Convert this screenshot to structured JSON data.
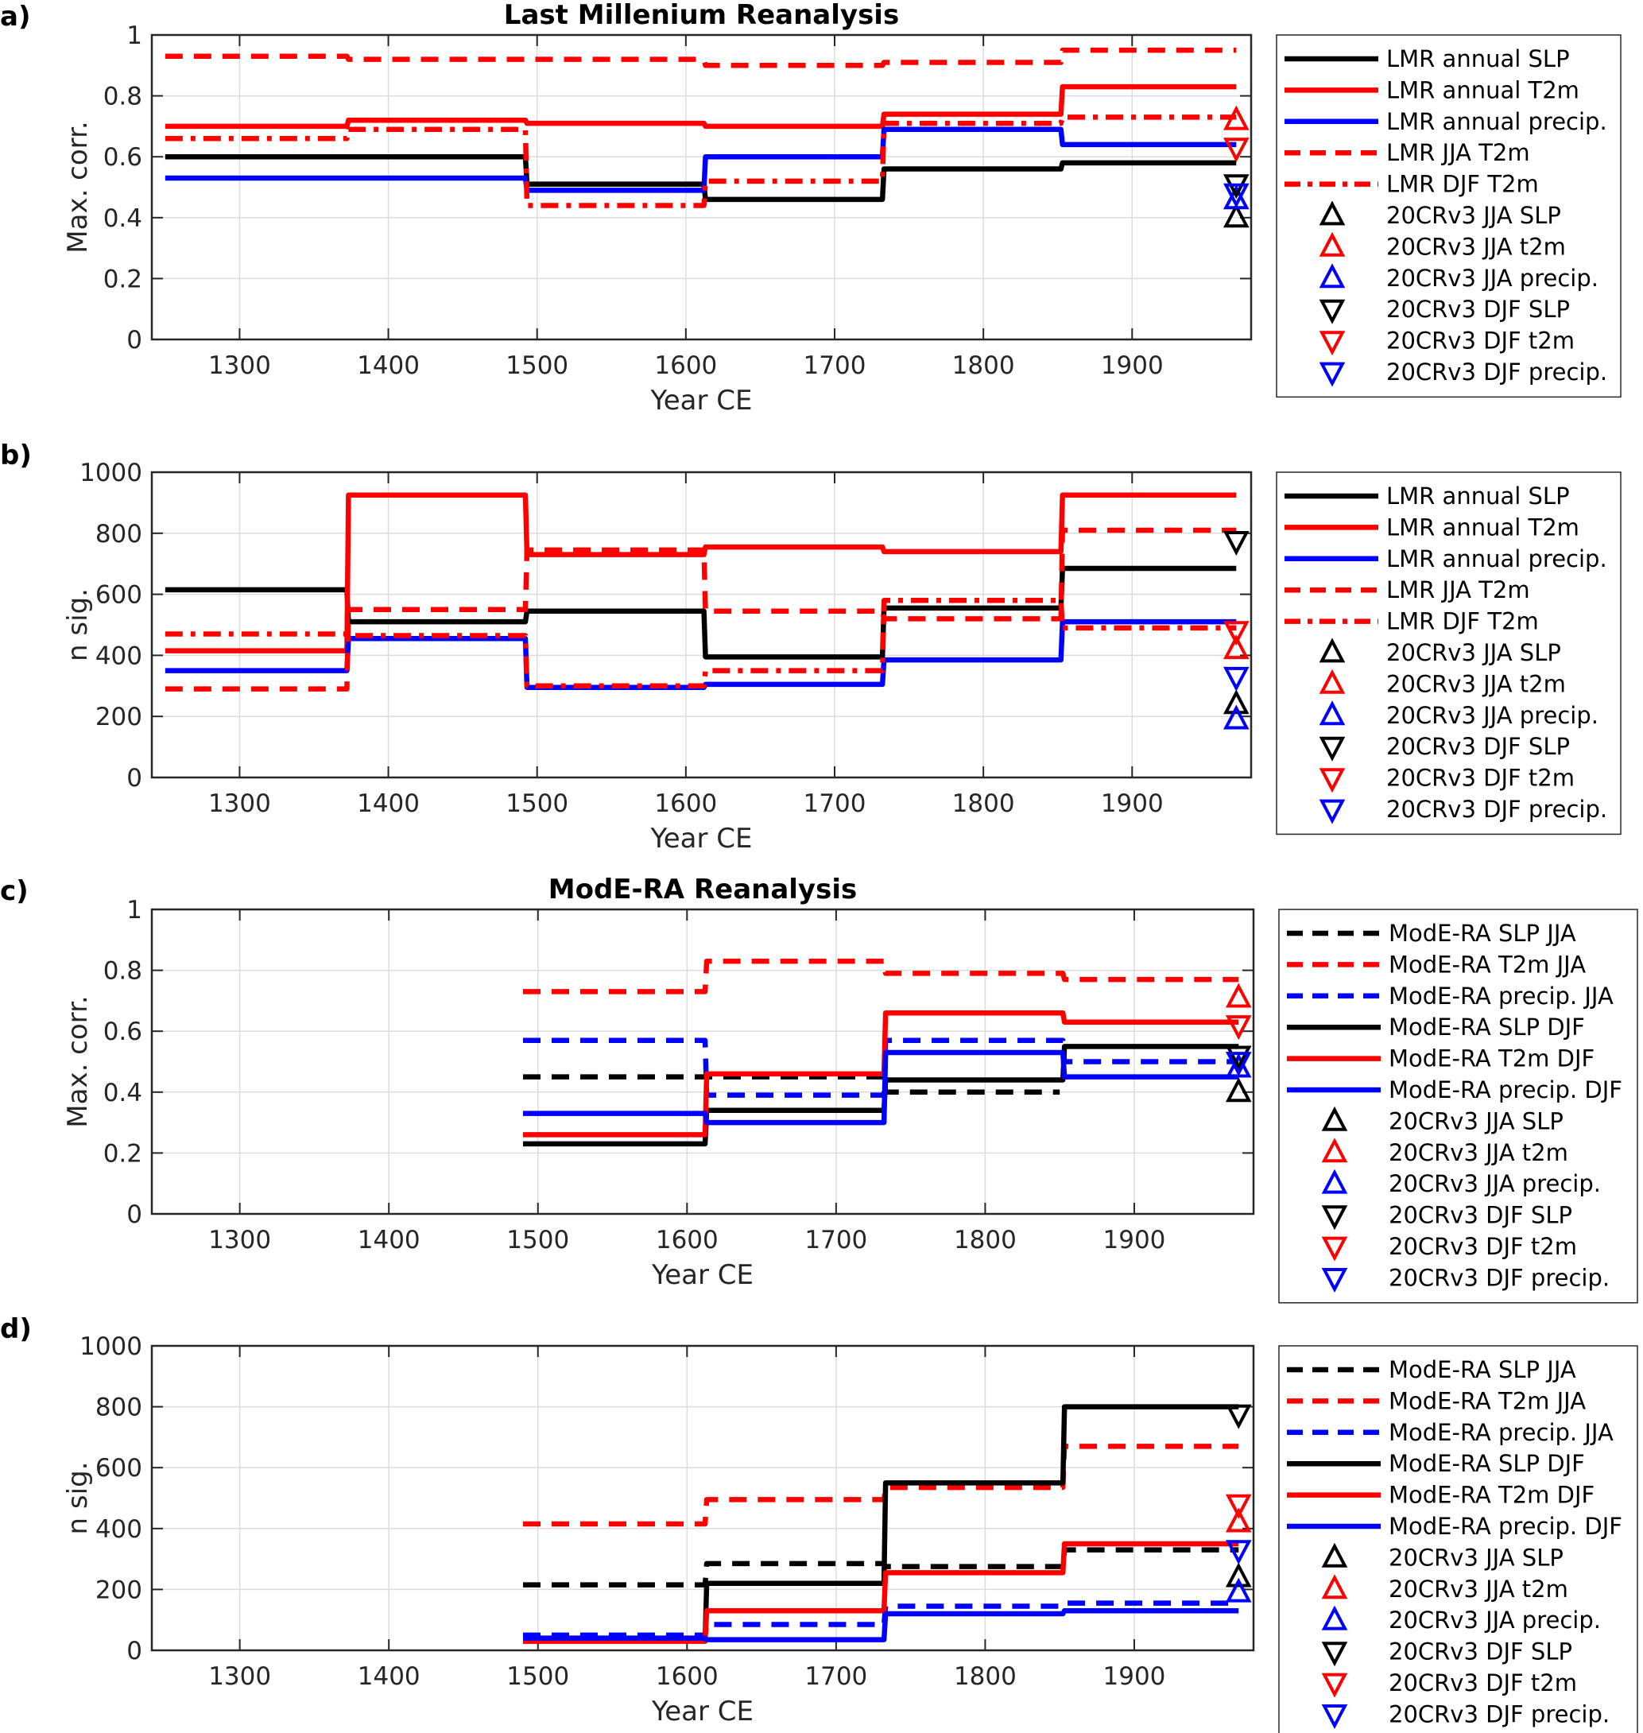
{
  "chart_data": [
    {
      "type": "line",
      "panel_label": "a)",
      "title": "Last Millenium Reanalysis",
      "xlabel": "Year CE",
      "ylabel": "Max. corr.",
      "xlim": [
        1241,
        1980
      ],
      "ylim": [
        0,
        1
      ],
      "xticks": [
        "1300",
        "1400",
        "1500",
        "1600",
        "1700",
        "1800",
        "1900"
      ],
      "yticks": [
        "0",
        "0.2",
        "0.4",
        "0.6",
        "0.8",
        "1"
      ],
      "grid": true,
      "legend_position": "outside-right",
      "step_edges": [
        1250,
        1370,
        1490,
        1610,
        1730,
        1850,
        1970
      ],
      "series": [
        {
          "name": "LMR annual SLP",
          "color": "#000000",
          "style": "solid",
          "values": [
            0.6,
            0.6,
            0.51,
            0.46,
            0.56,
            0.58
          ]
        },
        {
          "name": "LMR annual T2m",
          "color": "#ff0000",
          "style": "solid",
          "values": [
            0.7,
            0.72,
            0.71,
            0.7,
            0.74,
            0.83
          ]
        },
        {
          "name": "LMR annual precip.",
          "color": "#0000ff",
          "style": "solid",
          "values": [
            0.53,
            0.53,
            0.49,
            0.6,
            0.69,
            0.64
          ]
        },
        {
          "name": "LMR JJA T2m",
          "color": "#ff0000",
          "style": "dashed",
          "values": [
            0.93,
            0.92,
            0.92,
            0.9,
            0.91,
            0.95
          ]
        },
        {
          "name": "LMR DJF T2m",
          "color": "#ff0000",
          "style": "dashdot",
          "values": [
            0.66,
            0.69,
            0.44,
            0.52,
            0.71,
            0.73
          ]
        }
      ],
      "markers": [
        {
          "name": "20CRv3 JJA SLP",
          "color": "#000000",
          "shape": "triangle-up",
          "x": 1970,
          "y": 0.4
        },
        {
          "name": "20CRv3 JJA t2m",
          "color": "#ff0000",
          "shape": "triangle-up",
          "x": 1970,
          "y": 0.72
        },
        {
          "name": "20CRv3 JJA precip.",
          "color": "#0000ff",
          "shape": "triangle-up",
          "x": 1970,
          "y": 0.46
        },
        {
          "name": "20CRv3 DJF SLP",
          "color": "#000000",
          "shape": "triangle-down",
          "x": 1970,
          "y": 0.51
        },
        {
          "name": "20CRv3 DJF t2m",
          "color": "#ff0000",
          "shape": "triangle-down",
          "x": 1970,
          "y": 0.63
        },
        {
          "name": "20CRv3 DJF precip.",
          "color": "#0000ff",
          "shape": "triangle-down",
          "x": 1970,
          "y": 0.48
        }
      ]
    },
    {
      "type": "line",
      "panel_label": "b)",
      "title": "",
      "xlabel": "Year CE",
      "ylabel": "n sig.",
      "xlim": [
        1241,
        1980
      ],
      "ylim": [
        0,
        1000
      ],
      "xticks": [
        "1300",
        "1400",
        "1500",
        "1600",
        "1700",
        "1800",
        "1900"
      ],
      "yticks": [
        "0",
        "200",
        "400",
        "600",
        "800",
        "1000"
      ],
      "grid": true,
      "legend_position": "outside-right",
      "step_edges": [
        1250,
        1370,
        1490,
        1610,
        1730,
        1850,
        1970
      ],
      "series": [
        {
          "name": "LMR annual SLP",
          "color": "#000000",
          "style": "solid",
          "values": [
            615,
            510,
            545,
            395,
            555,
            685
          ]
        },
        {
          "name": "LMR annual T2m",
          "color": "#ff0000",
          "style": "solid",
          "values": [
            415,
            925,
            730,
            755,
            740,
            925
          ]
        },
        {
          "name": "LMR annual precip.",
          "color": "#0000ff",
          "style": "solid",
          "values": [
            350,
            455,
            295,
            305,
            385,
            510
          ]
        },
        {
          "name": "LMR JJA T2m",
          "color": "#ff0000",
          "style": "dashed",
          "values": [
            290,
            550,
            745,
            545,
            520,
            810
          ]
        },
        {
          "name": "LMR DJF T2m",
          "color": "#ff0000",
          "style": "dashdot",
          "values": [
            470,
            465,
            300,
            350,
            580,
            490
          ]
        }
      ],
      "markers": [
        {
          "name": "20CRv3 JJA SLP",
          "color": "#000000",
          "shape": "triangle-up",
          "x": 1970,
          "y": 240
        },
        {
          "name": "20CRv3 JJA t2m",
          "color": "#ff0000",
          "shape": "triangle-up",
          "x": 1970,
          "y": 420
        },
        {
          "name": "20CRv3 JJA precip.",
          "color": "#0000ff",
          "shape": "triangle-up",
          "x": 1970,
          "y": 190
        },
        {
          "name": "20CRv3 DJF SLP",
          "color": "#000000",
          "shape": "triangle-down",
          "x": 1970,
          "y": 775
        },
        {
          "name": "20CRv3 DJF t2m",
          "color": "#ff0000",
          "shape": "triangle-down",
          "x": 1970,
          "y": 480
        },
        {
          "name": "20CRv3 DJF precip.",
          "color": "#0000ff",
          "shape": "triangle-down",
          "x": 1970,
          "y": 330
        }
      ]
    },
    {
      "type": "line",
      "panel_label": "c)",
      "title": "ModE-RA Reanalysis",
      "xlabel": "Year CE",
      "ylabel": "Max. corr.",
      "xlim": [
        1241,
        1980
      ],
      "ylim": [
        0,
        1
      ],
      "xticks": [
        "1300",
        "1400",
        "1500",
        "1600",
        "1700",
        "1800",
        "1900"
      ],
      "yticks": [
        "0",
        "0.2",
        "0.4",
        "0.6",
        "0.8",
        "1"
      ],
      "grid": true,
      "legend_position": "outside-right",
      "step_edges": [
        1490,
        1610,
        1730,
        1850,
        1970
      ],
      "series": [
        {
          "name": "ModE-RA SLP JJA",
          "color": "#000000",
          "style": "dashed",
          "values": [
            0.45,
            0.45,
            0.4,
            null
          ]
        },
        {
          "name": "ModE-RA T2m JJA",
          "color": "#ff0000",
          "style": "dashed",
          "values": [
            0.73,
            0.83,
            0.79,
            0.77
          ]
        },
        {
          "name": "ModE-RA precip. JJA",
          "color": "#0000ff",
          "style": "dashed",
          "values": [
            0.57,
            0.39,
            0.57,
            0.5
          ]
        },
        {
          "name": "ModE-RA SLP DJF",
          "color": "#000000",
          "style": "solid",
          "values": [
            0.23,
            0.34,
            0.44,
            0.55
          ]
        },
        {
          "name": "ModE-RA T2m DJF",
          "color": "#ff0000",
          "style": "solid",
          "values": [
            0.26,
            0.46,
            0.66,
            0.63
          ]
        },
        {
          "name": "ModE-RA precip. DJF",
          "color": "#0000ff",
          "style": "solid",
          "values": [
            0.33,
            0.3,
            0.53,
            0.45
          ]
        }
      ],
      "markers": [
        {
          "name": "20CRv3 JJA SLP",
          "color": "#000000",
          "shape": "triangle-up",
          "x": 1970,
          "y": 0.4
        },
        {
          "name": "20CRv3 JJA t2m",
          "color": "#ff0000",
          "shape": "triangle-up",
          "x": 1970,
          "y": 0.71
        },
        {
          "name": "20CRv3 JJA precip.",
          "color": "#0000ff",
          "shape": "triangle-up",
          "x": 1970,
          "y": 0.48
        },
        {
          "name": "20CRv3 DJF SLP",
          "color": "#000000",
          "shape": "triangle-down",
          "x": 1970,
          "y": 0.52
        },
        {
          "name": "20CRv3 DJF t2m",
          "color": "#ff0000",
          "shape": "triangle-down",
          "x": 1970,
          "y": 0.62
        },
        {
          "name": "20CRv3 DJF precip.",
          "color": "#0000ff",
          "shape": "triangle-down",
          "x": 1970,
          "y": 0.5
        }
      ]
    },
    {
      "type": "line",
      "panel_label": "d)",
      "title": "",
      "xlabel": "Year CE",
      "ylabel": "n sig.",
      "xlim": [
        1241,
        1980
      ],
      "ylim": [
        0,
        1000
      ],
      "xticks": [
        "1300",
        "1400",
        "1500",
        "1600",
        "1700",
        "1800",
        "1900"
      ],
      "yticks": [
        "0",
        "200",
        "400",
        "600",
        "800",
        "1000"
      ],
      "grid": true,
      "legend_position": "outside-right",
      "step_edges": [
        1490,
        1610,
        1730,
        1850,
        1970
      ],
      "series": [
        {
          "name": "ModE-RA SLP JJA",
          "color": "#000000",
          "style": "dashed",
          "values": [
            215,
            285,
            275,
            330
          ]
        },
        {
          "name": "ModE-RA T2m JJA",
          "color": "#ff0000",
          "style": "dashed",
          "values": [
            415,
            495,
            535,
            670
          ]
        },
        {
          "name": "ModE-RA precip. JJA",
          "color": "#0000ff",
          "style": "dashed",
          "values": [
            50,
            85,
            145,
            155
          ]
        },
        {
          "name": "ModE-RA SLP DJF",
          "color": "#000000",
          "style": "solid",
          "values": [
            30,
            220,
            550,
            800
          ]
        },
        {
          "name": "ModE-RA T2m DJF",
          "color": "#ff0000",
          "style": "solid",
          "values": [
            30,
            130,
            255,
            350
          ]
        },
        {
          "name": "ModE-RA precip. DJF",
          "color": "#0000ff",
          "style": "solid",
          "values": [
            40,
            35,
            120,
            130
          ]
        }
      ],
      "markers": [
        {
          "name": "20CRv3 JJA SLP",
          "color": "#000000",
          "shape": "triangle-up",
          "x": 1970,
          "y": 240
        },
        {
          "name": "20CRv3 JJA t2m",
          "color": "#ff0000",
          "shape": "triangle-up",
          "x": 1970,
          "y": 420
        },
        {
          "name": "20CRv3 JJA precip.",
          "color": "#0000ff",
          "shape": "triangle-up",
          "x": 1970,
          "y": 190
        },
        {
          "name": "20CRv3 DJF SLP",
          "color": "#000000",
          "shape": "triangle-down",
          "x": 1970,
          "y": 775
        },
        {
          "name": "20CRv3 DJF t2m",
          "color": "#ff0000",
          "shape": "triangle-down",
          "x": 1970,
          "y": 480
        },
        {
          "name": "20CRv3 DJF precip.",
          "color": "#0000ff",
          "shape": "triangle-down",
          "x": 1970,
          "y": 330
        }
      ]
    }
  ]
}
